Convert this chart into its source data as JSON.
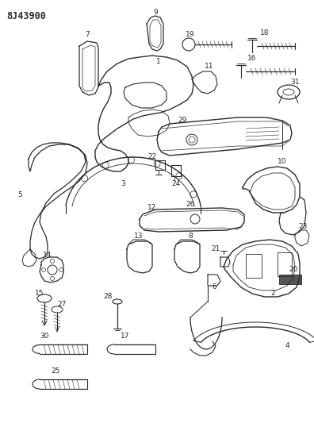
{
  "title": "8J43900",
  "bg_color": "#ffffff",
  "line_color": "#2a2a2a",
  "fig_width": 3.96,
  "fig_height": 5.33,
  "dpi": 100
}
